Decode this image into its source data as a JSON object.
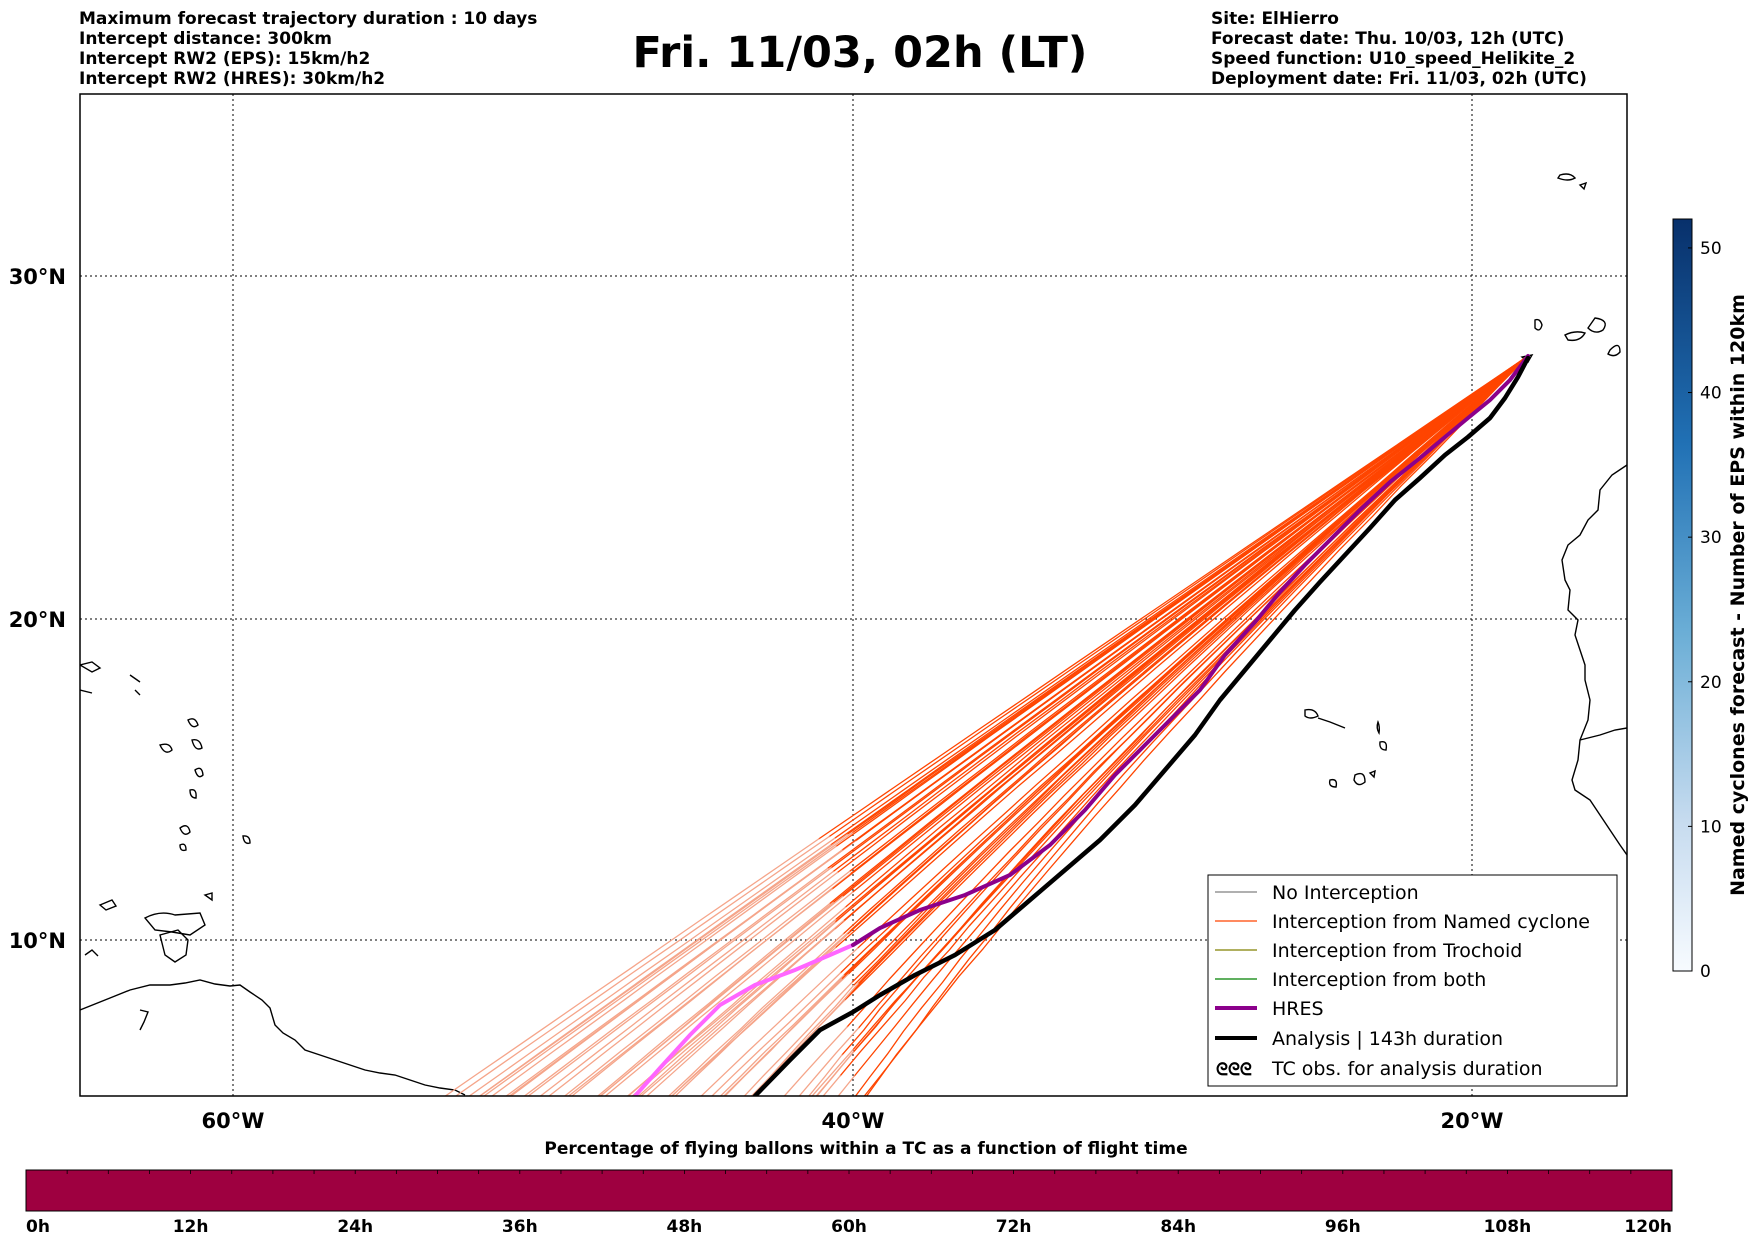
{
  "header": {
    "left_lines": [
      "Maximum forecast trajectory duration : 10 days",
      "Intercept distance: 300km",
      "Intercept RW2 (EPS):  15km/h2",
      "Intercept RW2 (HRES): 30km/h2"
    ],
    "title": "Fri. 11/03, 02h (LT)",
    "right_lines": [
      "Site: ElHierro",
      "Forecast date: Thu. 10/03, 12h (UTC)",
      "Speed function: U10_speed_Helikite_2",
      "Deployment date: Fri. 11/03, 02h (UTC)"
    ]
  },
  "map": {
    "lon_labels": [
      "60°W",
      "40°W",
      "20°W"
    ],
    "lat_labels": [
      "30°N",
      "20°N",
      "10°N"
    ],
    "colors": {
      "named_cyclone": "#ff4500",
      "named_cyclone_faded": "#f5a58a",
      "hres": "#8b008b",
      "hres_faded": "#ff66ff",
      "analysis": "#000000",
      "no_interception": "#808080",
      "trochoid": "#808000",
      "both": "#008000"
    }
  },
  "legend": {
    "items": [
      {
        "label": "No Interception",
        "icon": "thin-gray-line"
      },
      {
        "label": "Interception from Named cyclone",
        "icon": "thin-orange-line"
      },
      {
        "label": "Interception from Trochoid",
        "icon": "thin-olive-line"
      },
      {
        "label": "Interception from both",
        "icon": "thin-green-line"
      },
      {
        "label": "HRES",
        "icon": "thick-purple-line"
      },
      {
        "label": "Analysis | 143h duration",
        "icon": "thick-black-line"
      },
      {
        "label": "TC obs. for analysis duration",
        "icon": "cyclone-symbols"
      }
    ],
    "tc_symbols": "ᘓᘓᘓ"
  },
  "right_colorbar": {
    "label": "Named cyclones forecast - Number of EPS within 120km",
    "ticks": [
      "0",
      "10",
      "20",
      "30",
      "40",
      "50"
    ],
    "range": [
      0,
      52
    ],
    "color_low": "#e8f0f9",
    "color_high": "#08306b"
  },
  "bottom_colorbar": {
    "title": "Percentage of flying ballons within a TC as a function of flight time",
    "ticks": [
      "0h",
      "12h",
      "24h",
      "36h",
      "48h",
      "60h",
      "72h",
      "84h",
      "96h",
      "108h",
      "120h"
    ],
    "fill_color": "#9e0040"
  }
}
